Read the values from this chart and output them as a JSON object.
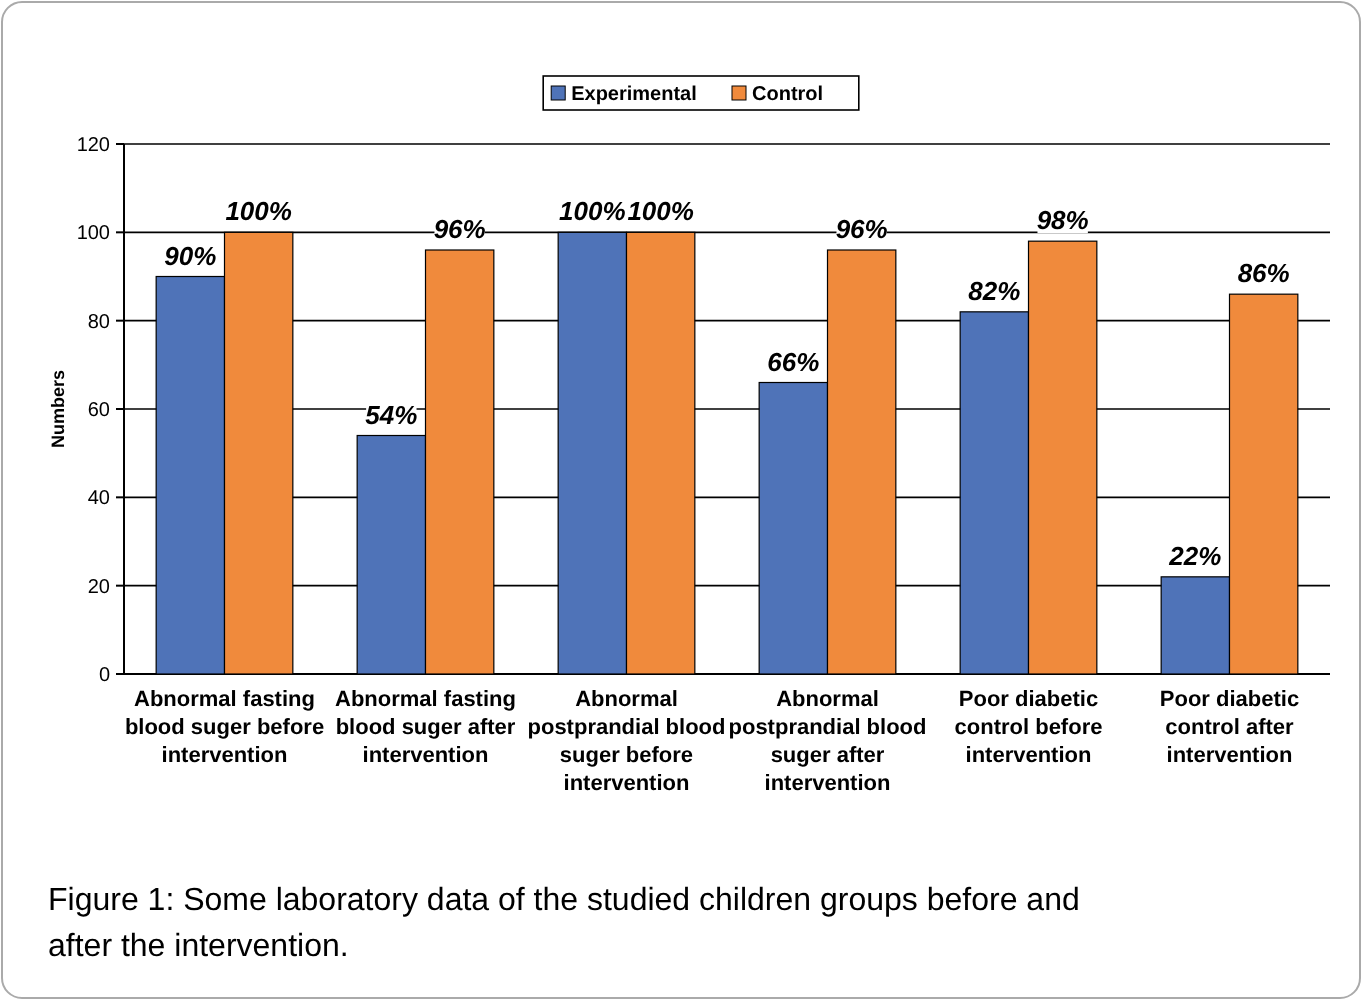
{
  "chart_data": {
    "type": "bar",
    "ylabel": "Numbers",
    "categories": [
      "Abnormal fasting blood suger before intervention",
      "Abnormal fasting blood suger after intervention",
      "Abnormal postprandial blood suger before intervention",
      "Abnormal postprandial blood suger after intervention",
      "Poor diabetic control before intervention",
      "Poor diabetic control after intervention"
    ],
    "series": [
      {
        "name": "Experimental",
        "color": "#4f73b8",
        "values": [
          90,
          54,
          100,
          66,
          82,
          22
        ],
        "value_labels": [
          "90%",
          "54%",
          "100%",
          "66%",
          "82%",
          "22%"
        ]
      },
      {
        "name": "Control",
        "color": "#f08a3c",
        "values": [
          100,
          96,
          100,
          96,
          98,
          86
        ],
        "value_labels": [
          "100%",
          "96%",
          "100%",
          "96%",
          "98%",
          "86%"
        ]
      }
    ],
    "ylim": [
      0,
      120
    ],
    "yticks": [
      0,
      20,
      40,
      60,
      80,
      100,
      120
    ],
    "grid": "y",
    "legend": "top",
    "annotations": [
      "Figure 1: Some laboratory data of the studied children groups before and after the intervention."
    ]
  }
}
